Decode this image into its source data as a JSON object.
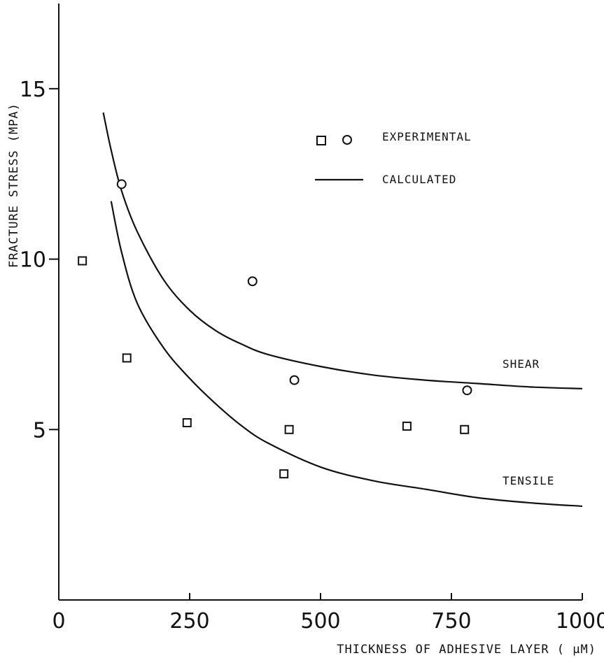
{
  "chart_data": {
    "type": "scatter",
    "xlabel": "THICKNESS OF ADHESIVE LAYER ( μM)",
    "ylabel": "FRACTURE STRESS (MPA)",
    "xlim": [
      0,
      1000
    ],
    "ylim": [
      0,
      17.5
    ],
    "x_ticks": [
      "0",
      "250",
      "500",
      "750",
      "1000"
    ],
    "y_ticks": [
      "5",
      "10",
      "15"
    ],
    "grid": false,
    "legend": {
      "placement": "top-right",
      "entries": [
        {
          "label": "EXPERIMENTAL",
          "markers": [
            "square",
            "circle"
          ]
        },
        {
          "label": "CALCULATED",
          "marker": "line"
        }
      ]
    },
    "series": [
      {
        "marker": "square",
        "x": [
          45,
          130,
          245,
          430,
          440,
          665,
          775
        ],
        "y": [
          9.95,
          7.1,
          5.2,
          3.7,
          5.0,
          5.1,
          5.0
        ]
      },
      {
        "marker": "circle",
        "x": [
          120,
          370,
          450,
          780
        ],
        "y": [
          12.2,
          9.35,
          6.45,
          6.15
        ]
      },
      {
        "name": "SHEAR",
        "line": true,
        "x": [
          85,
          100,
          120,
          150,
          200,
          250,
          300,
          350,
          400,
          500,
          600,
          700,
          800,
          900,
          1000
        ],
        "y": [
          14.3,
          13.2,
          12.0,
          10.8,
          9.4,
          8.5,
          7.9,
          7.5,
          7.2,
          6.85,
          6.6,
          6.45,
          6.35,
          6.25,
          6.2
        ]
      },
      {
        "name": "TENSILE",
        "line": true,
        "x": [
          100,
          120,
          150,
          200,
          250,
          300,
          350,
          400,
          500,
          600,
          700,
          800,
          900,
          1000
        ],
        "y": [
          11.7,
          10.2,
          8.7,
          7.4,
          6.5,
          5.75,
          5.1,
          4.6,
          3.9,
          3.5,
          3.25,
          3.0,
          2.85,
          2.75
        ]
      }
    ]
  }
}
